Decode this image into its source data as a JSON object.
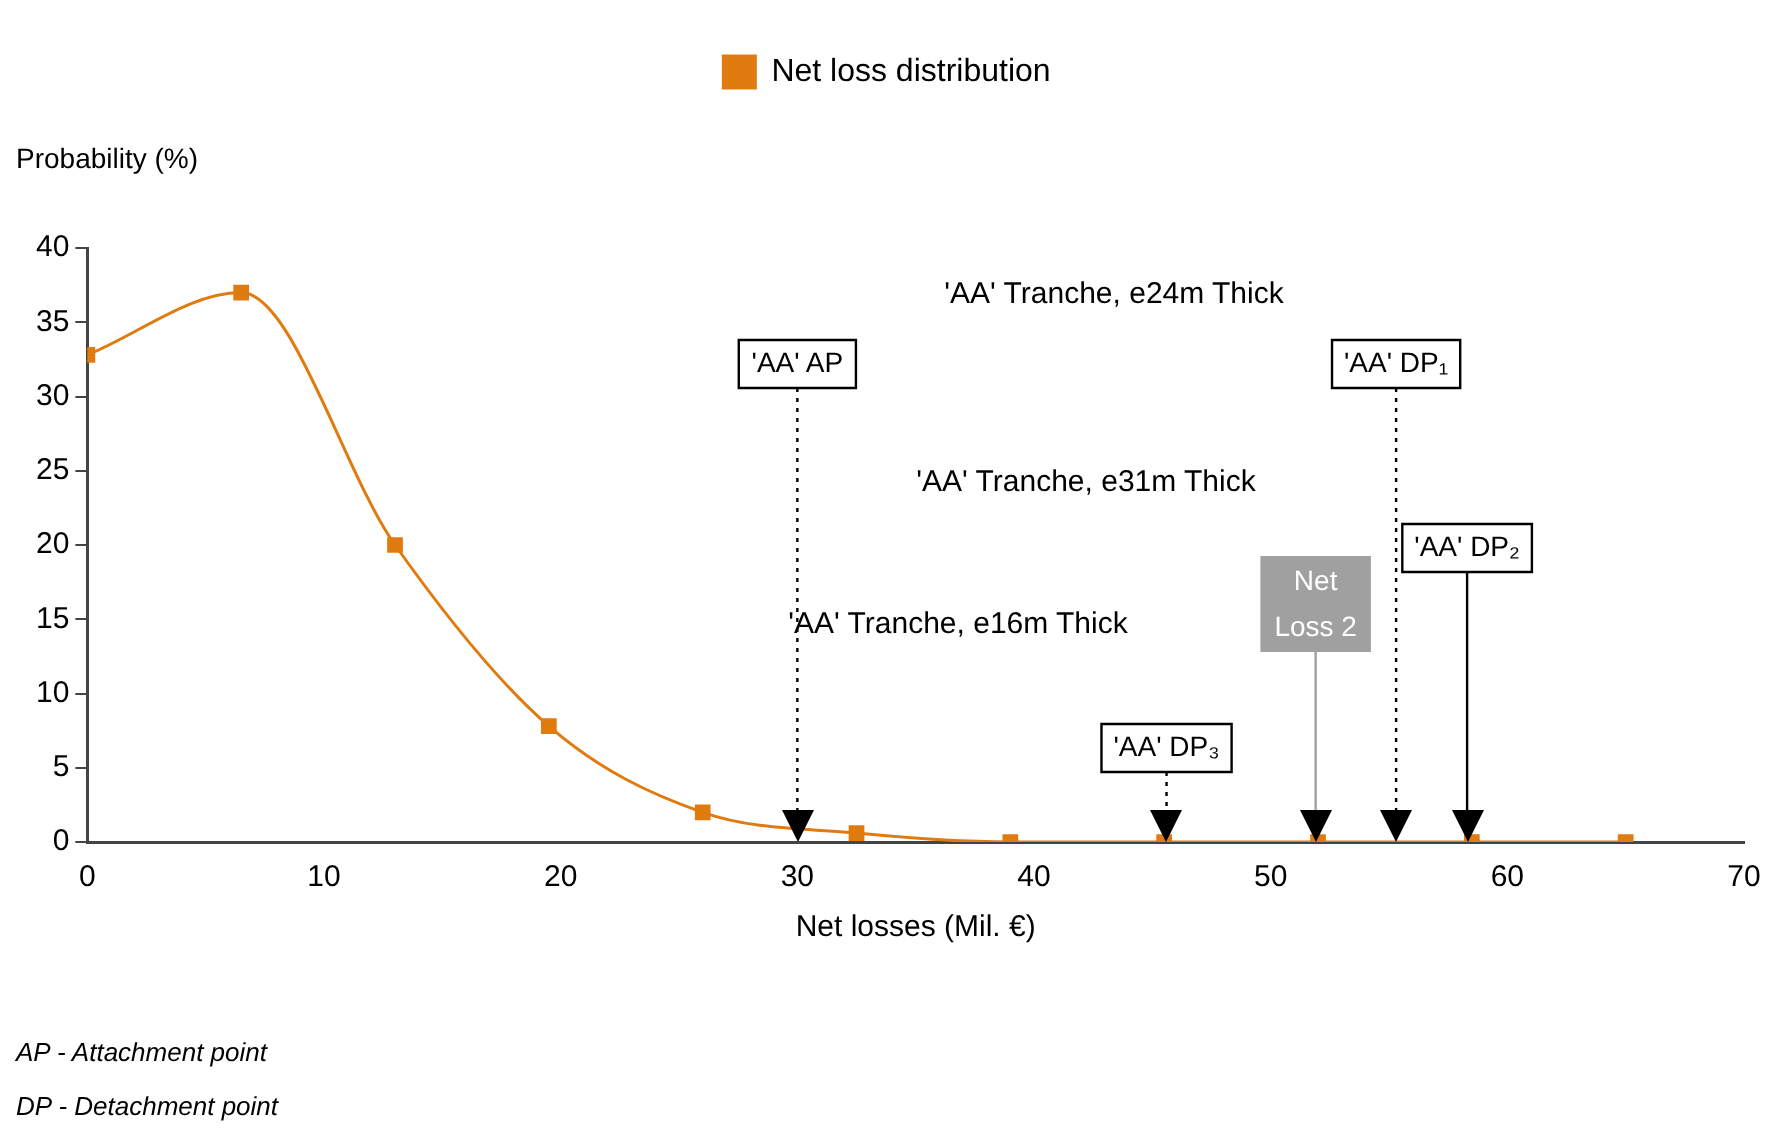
{
  "chart_data": {
    "type": "line",
    "xlabel": "Net losses (Mil. €)",
    "ylabel": "Probability (%)",
    "x": [
      0,
      6.5,
      13,
      19.5,
      26,
      32.5,
      39,
      45.5,
      52,
      58.5,
      65
    ],
    "series": [
      {
        "name": "Net loss distribution",
        "color": "#e07b10",
        "values": [
          32.8,
          37,
          20,
          7.8,
          2,
          0.6,
          0,
          0,
          0,
          0,
          0
        ]
      }
    ],
    "xlim": [
      0,
      70
    ],
    "xticks": [
      0,
      10,
      20,
      30,
      40,
      50,
      60,
      70
    ],
    "ylim": [
      0,
      40
    ],
    "yticks": [
      0,
      5,
      10,
      15,
      20,
      25,
      30,
      35,
      40
    ],
    "grid": false,
    "legend": "top",
    "marker": "square",
    "line_style": "solid",
    "ref_lines": [
      {
        "axis": "x",
        "value": 30,
        "label": "'AA' AP",
        "line_style": "dotted"
      },
      {
        "axis": "x",
        "value": 55.3,
        "label": "'AA' DP₁",
        "line_style": "dotted"
      },
      {
        "axis": "x",
        "value": 58.3,
        "label": "'AA' DP₂",
        "line_style": "solid"
      },
      {
        "axis": "x",
        "value": 45.6,
        "label": "'AA' DP₃",
        "line_style": "dotted"
      },
      {
        "axis": "x",
        "value": 51.9,
        "label": "Net Loss 2",
        "line_style": "solid",
        "color": "#a0a0a0"
      }
    ],
    "annotations": [
      "'AA' Tranche, e24m Thick",
      "'AA' Tranche, e31m Thick",
      "'AA' Tranche, e16m Thick",
      "AP - Attachment point",
      "DP - Detachment point"
    ]
  }
}
